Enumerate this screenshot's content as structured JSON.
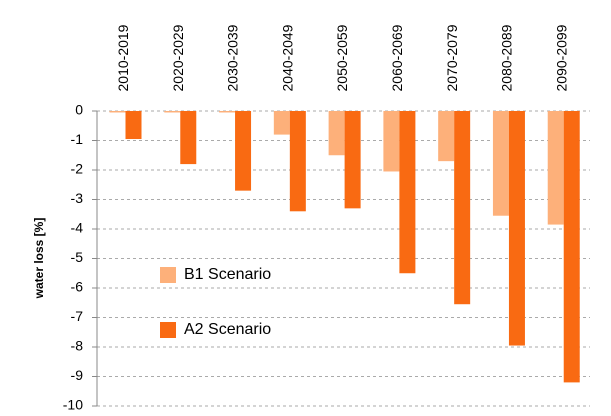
{
  "chart_data": {
    "type": "bar",
    "y_label": "water loss   [%]",
    "categories": [
      "2010-2019",
      "2020-2029",
      "2030-2039",
      "2040-2049",
      "2050-2059",
      "2060-2069",
      "2070-2079",
      "2080-2089",
      "2090-2099"
    ],
    "series": [
      {
        "name": "B1 Scenario",
        "color": "#fdb07a",
        "values": [
          -0.05,
          -0.05,
          -0.05,
          -0.8,
          -1.5,
          -2.05,
          -1.7,
          -3.55,
          -3.85
        ]
      },
      {
        "name": "A2 Scenario",
        "color": "#f96a12",
        "values": [
          -0.95,
          -1.8,
          -2.7,
          -3.4,
          -3.3,
          -5.5,
          -6.55,
          -7.95,
          -9.2
        ]
      }
    ],
    "ylim": [
      -10,
      0
    ],
    "yticks": [
      0,
      -1,
      -2,
      -3,
      -4,
      -5,
      -6,
      -7,
      -8,
      -9,
      -10
    ],
    "grid": true,
    "legend": "left"
  }
}
